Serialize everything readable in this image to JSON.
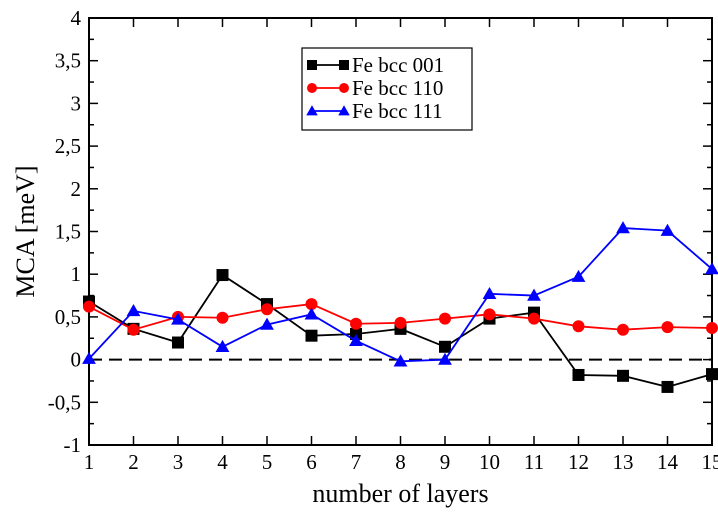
{
  "chart_data": {
    "type": "line",
    "title": "",
    "xlabel": "number of layers",
    "ylabel": "MCA [meV]",
    "xlim": [
      1,
      15
    ],
    "ylim": [
      -1,
      4
    ],
    "xticks": [
      1,
      2,
      3,
      4,
      5,
      6,
      7,
      8,
      9,
      10,
      11,
      12,
      13,
      14,
      15
    ],
    "xtick_labels": [
      "1",
      "2",
      "3",
      "4",
      "5",
      "6",
      "7",
      "8",
      "9",
      "10",
      "11",
      "12",
      "13",
      "14",
      "15"
    ],
    "yticks": [
      -1,
      -0.5,
      0,
      0.5,
      1,
      1.5,
      2,
      2.5,
      3,
      3.5,
      4
    ],
    "ytick_labels": [
      "-1",
      "-0,5",
      "0",
      "0,5",
      "1",
      "1,5",
      "2",
      "2,5",
      "3",
      "3,5",
      "4"
    ],
    "grid": false,
    "legend_position": "top-center",
    "reference_line": {
      "y": 0,
      "style": "dashed",
      "color": "#000000"
    },
    "x": [
      1,
      2,
      3,
      4,
      5,
      6,
      7,
      8,
      9,
      10,
      11,
      12,
      13,
      14,
      15
    ],
    "series": [
      {
        "name": "Fe bcc 001",
        "marker": "square",
        "color": "#000000",
        "values": [
          0.68,
          0.36,
          0.2,
          0.99,
          0.65,
          0.28,
          0.3,
          0.36,
          0.15,
          0.48,
          0.55,
          -0.18,
          -0.19,
          -0.32,
          -0.17
        ]
      },
      {
        "name": "Fe bcc 110",
        "marker": "circle",
        "color": "#ff0000",
        "values": [
          0.62,
          0.35,
          0.5,
          0.49,
          0.59,
          0.65,
          0.42,
          0.43,
          0.48,
          0.53,
          0.48,
          0.39,
          0.35,
          0.38,
          0.37
        ]
      },
      {
        "name": "Fe bcc 111",
        "marker": "triangle",
        "color": "#0000ff",
        "values": [
          0.01,
          0.57,
          0.47,
          0.15,
          0.41,
          0.53,
          0.22,
          -0.02,
          0.0,
          0.77,
          0.75,
          0.97,
          1.54,
          1.51,
          1.06
        ]
      }
    ]
  }
}
